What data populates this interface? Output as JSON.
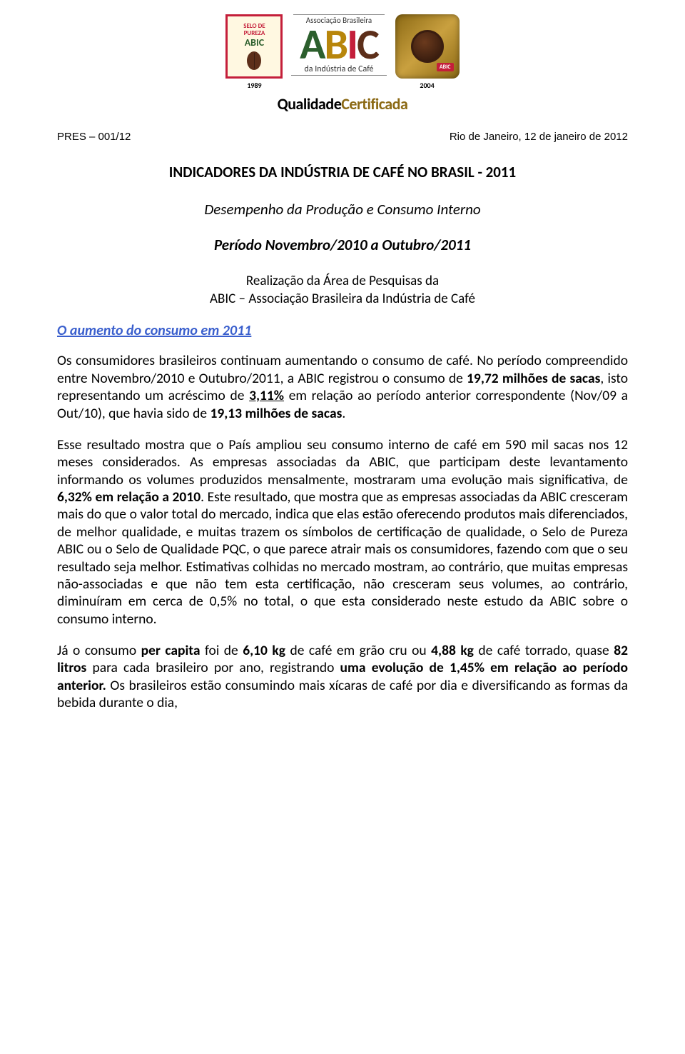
{
  "header": {
    "selo_pureza": {
      "line1": "SELO DE",
      "line2": "PUREZA",
      "line3": "ABIC",
      "year": "1989"
    },
    "abic": {
      "top": "Associação Brasileira",
      "a": "A",
      "b": "B",
      "i": "I",
      "c": "C",
      "bottom": "da Indústria de Café"
    },
    "selo_qualidade": {
      "tag": "ABIC",
      "year": "2004"
    },
    "qc_part1": "Qualidade",
    "qc_part2": "Certificada"
  },
  "ref": {
    "left": "PRES – 001/12",
    "right": "Rio de Janeiro, 12 de janeiro de 2012"
  },
  "title": "INDICADORES DA INDÚSTRIA DE CAFÉ NO BRASIL - 2011",
  "subtitle": "Desempenho da Produção e Consumo Interno",
  "period": "Período Novembro/2010 a Outubro/2011",
  "realiz1": "Realização da Área de Pesquisas da",
  "realiz2": "ABIC – Associação Brasileira da Indústria de Café",
  "section_heading": "O aumento do consumo em 2011",
  "p1": {
    "t1": "Os consumidores brasileiros continuam aumentando o consumo de café. No período compreendido entre Novembro/2010 e Outubro/2011, a ABIC registrou o consumo de ",
    "b1": "19,72 milhões de sacas",
    "t2": ", isto representando um acréscimo de ",
    "b2": "3,11%",
    "t3": " em relação ao período anterior correspondente (Nov/09 a Out/10), que havia sido de ",
    "b3": "19,13 milhões de sacas",
    "t4": "."
  },
  "p2": {
    "t1": "Esse resultado mostra que o País ampliou seu consumo interno de café em 590 mil sacas nos 12 meses considerados. As empresas associadas da ABIC, que participam deste levantamento informando os volumes produzidos mensalmente, mostraram uma evolução mais significativa, de ",
    "b1": "6,32% em relação a 2010",
    "t2": ". Este resultado, que mostra que as empresas associadas da ABIC cresceram mais do que o valor total do mercado, indica que elas estão oferecendo produtos mais diferenciados, de melhor qualidade, e muitas trazem os símbolos de certificação de qualidade, o Selo de Pureza ABIC ou o Selo de Qualidade PQC, o que parece atrair mais os consumidores, fazendo com que o seu resultado seja melhor. Estimativas colhidas no mercado mostram, ao contrário, que muitas empresas não-associadas e que não tem esta certificação, não cresceram seus volumes, ao contrário, diminuíram em cerca de 0,5% no total, o que esta considerado neste estudo da ABIC sobre o consumo interno."
  },
  "p3": {
    "t1": "Já o consumo ",
    "b1": "per capita",
    "t2": " foi de ",
    "b2": "6,10 kg",
    "t3": " de café em grão cru ou ",
    "b3": "4,88 kg",
    "t4": " de café torrado, quase ",
    "b4": "82 litros",
    "t5": " para cada brasileiro por ano, registrando ",
    "b5": "uma evolução de 1,45% em relação ao período anterior.",
    "t6": " Os brasileiros estão consumindo mais xícaras de café por dia e diversificando as formas da bebida durante o dia,"
  },
  "colors": {
    "link_blue": "#3a5fcd",
    "red": "#c41e3a",
    "green": "#2c5f2d",
    "ochre": "#b8860b",
    "brown": "#5d2f1a",
    "gold": "#8b6914"
  }
}
